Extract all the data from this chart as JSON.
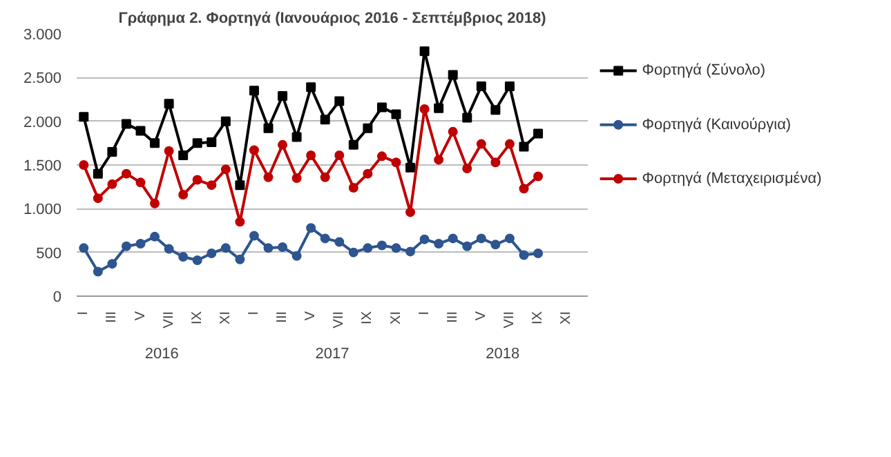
{
  "chart_data": {
    "type": "line",
    "title": "Γράφημα 2. Φορτηγά (Ιανουάριος 2016 - Σεπτέμβριος 2018)",
    "categories": [
      "I",
      null,
      "III",
      null,
      "V",
      null,
      "VII",
      null,
      "IX",
      null,
      "XI",
      null,
      "I",
      null,
      "III",
      null,
      "V",
      null,
      "VII",
      null,
      "IX",
      null,
      "XI",
      null,
      "I",
      null,
      "III",
      null,
      "V",
      null,
      "VII",
      null,
      "IX",
      null,
      "XI",
      null
    ],
    "annotations": [
      "2016",
      "2017",
      "2018"
    ],
    "series": [
      {
        "name": "Φορτηγά (Σύνολο)",
        "color": "#000000",
        "marker": "square",
        "values": [
          2050,
          1400,
          1650,
          1970,
          1890,
          1750,
          2200,
          1610,
          1750,
          1760,
          2000,
          1270,
          2350,
          1920,
          2290,
          1820,
          2390,
          2020,
          2230,
          1730,
          1920,
          2160,
          2080,
          1470,
          2800,
          2150,
          2530,
          2040,
          2400,
          2130,
          2400,
          1710,
          1860,
          null,
          null,
          null
        ]
      },
      {
        "name": "Φορτηγά (Καινούργια)",
        "color": "#2e5590",
        "marker": "circle",
        "values": [
          550,
          280,
          370,
          570,
          600,
          680,
          540,
          450,
          410,
          490,
          550,
          420,
          690,
          550,
          560,
          460,
          780,
          660,
          620,
          500,
          550,
          580,
          550,
          510,
          650,
          600,
          660,
          570,
          660,
          590,
          660,
          470,
          490,
          null,
          null,
          null
        ]
      },
      {
        "name": "Φορτηγά (Μεταχειρισμένα)",
        "color": "#c00000",
        "marker": "circle",
        "values": [
          1500,
          1120,
          1280,
          1400,
          1300,
          1060,
          1660,
          1160,
          1330,
          1270,
          1450,
          850,
          1670,
          1360,
          1730,
          1350,
          1610,
          1360,
          1610,
          1240,
          1400,
          1600,
          1530,
          960,
          2140,
          1560,
          1880,
          1460,
          1740,
          1530,
          1740,
          1230,
          1370,
          null,
          null,
          null
        ]
      }
    ],
    "ylim": [
      0,
      3000
    ],
    "yticks": [
      0,
      {
        "value": 500,
        "label": "500"
      },
      {
        "value": 1000,
        "label": "1.000"
      },
      {
        "value": 1500,
        "label": "1.500"
      },
      {
        "value": 2000,
        "label": "2.000"
      },
      {
        "value": 2500,
        "label": "2.500"
      },
      {
        "value": 3000,
        "label": "3.000"
      }
    ],
    "grid": "y",
    "legend": "right",
    "line_style": "solid"
  }
}
